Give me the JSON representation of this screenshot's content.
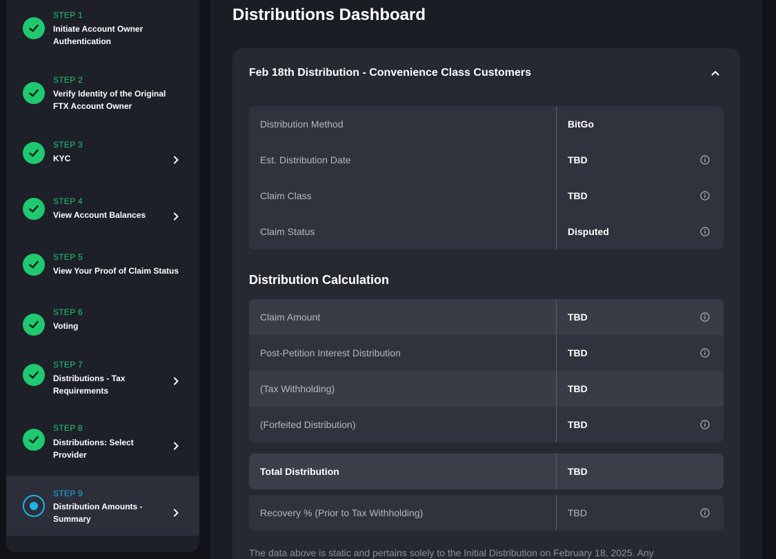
{
  "sidebar": {
    "steps": [
      {
        "number": "STEP 1",
        "title": "Initiate Account Owner Authentication",
        "status": "complete",
        "chevron": false
      },
      {
        "number": "STEP 2",
        "title": "Verify Identity of the Original FTX Account Owner",
        "status": "complete",
        "chevron": false
      },
      {
        "number": "STEP 3",
        "title": "KYC",
        "status": "complete",
        "chevron": true
      },
      {
        "number": "STEP 4",
        "title": "View Account Balances",
        "status": "complete",
        "chevron": true
      },
      {
        "number": "STEP 5",
        "title": "View Your Proof of Claim Status",
        "status": "complete",
        "chevron": false
      },
      {
        "number": "STEP 6",
        "title": "Voting",
        "status": "complete",
        "chevron": false
      },
      {
        "number": "STEP 7",
        "title": "Distributions - Tax Requirements",
        "status": "complete",
        "chevron": true
      },
      {
        "number": "STEP 8",
        "title": "Distributions: Select Provider",
        "status": "complete",
        "chevron": true
      },
      {
        "number": "STEP 9",
        "title": "Distribution Amounts - Summary",
        "status": "current",
        "chevron": true
      }
    ]
  },
  "main": {
    "title": "Distributions Dashboard",
    "card": {
      "title": "Feb 18th Distribution - Convenience Class Customers",
      "details": [
        {
          "label": "Distribution Method",
          "value": "BitGo"
        },
        {
          "label": "Est. Distribution Date",
          "value": "TBD"
        },
        {
          "label": "Claim Class",
          "value": "TBD"
        },
        {
          "label": "Claim Status",
          "value": "Disputed"
        }
      ],
      "calc_title": "Distribution Calculation",
      "calc": [
        {
          "label": "Claim Amount",
          "value": "TBD"
        },
        {
          "label": "Post-Petition Interest Distribution",
          "value": "TBD"
        },
        {
          "label": "(Tax Withholding)",
          "value": "TBD"
        },
        {
          "label": "(Forfeited Distribution)",
          "value": "TBD"
        }
      ],
      "total": {
        "label": "Total Distribution",
        "value": "TBD"
      },
      "recovery": {
        "label": "Recovery % (Prior to Tax Withholding)",
        "value": "TBD"
      },
      "footnote": "The data above is static and pertains solely to the Initial Distribution on February 18, 2025. Any"
    }
  },
  "colors": {
    "complete": "#1fc96f",
    "current": "#1db4e8"
  }
}
